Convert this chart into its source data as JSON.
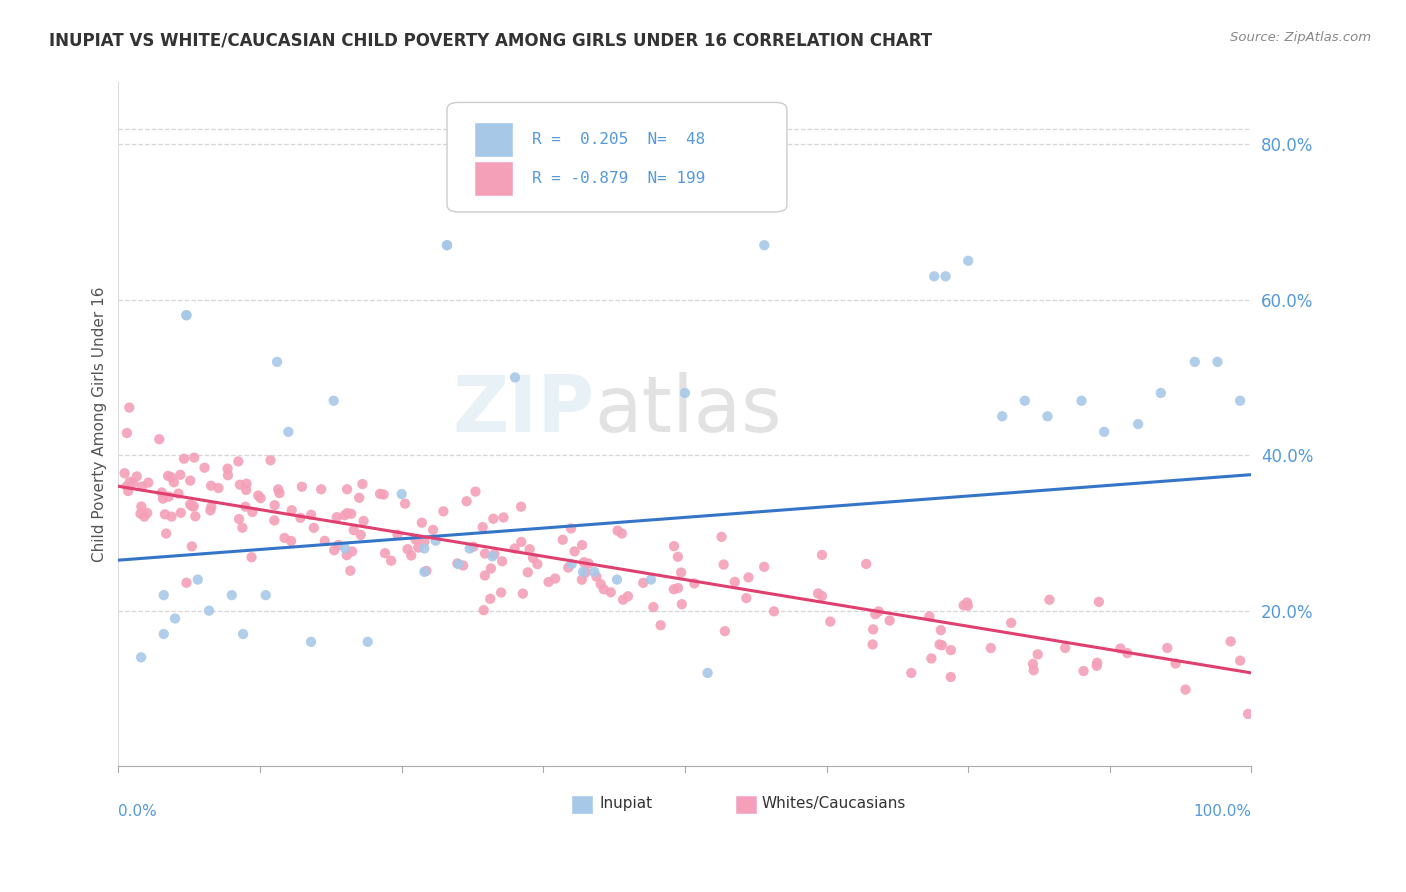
{
  "title": "INUPIAT VS WHITE/CAUCASIAN CHILD POVERTY AMONG GIRLS UNDER 16 CORRELATION CHART",
  "source": "Source: ZipAtlas.com",
  "ylabel": "Child Poverty Among Girls Under 16",
  "xlim": [
    0,
    1
  ],
  "ylim": [
    0.0,
    0.88
  ],
  "ytick_vals": [
    0.2,
    0.4,
    0.6,
    0.8
  ],
  "ytick_labels": [
    "20.0%",
    "40.0%",
    "60.0%",
    "80.0%"
  ],
  "inupiat_color": "#a8c8e8",
  "white_color": "#f4a0b8",
  "trend_inupiat_color": "#3575c8",
  "trend_white_color": "#e04070",
  "background_color": "#ffffff",
  "grid_color": "#cccccc",
  "title_color": "#333333",
  "source_color": "#888888",
  "axis_label_color": "#555555",
  "tick_color": "#5599dd",
  "inupiat_x": [
    0.02,
    0.04,
    0.05,
    0.06,
    0.07,
    0.08,
    0.1,
    0.11,
    0.13,
    0.14,
    0.15,
    0.17,
    0.19,
    0.2,
    0.22,
    0.25,
    0.27,
    0.27,
    0.28,
    0.29,
    0.29,
    0.3,
    0.31,
    0.33,
    0.35,
    0.4,
    0.41,
    0.42,
    0.44,
    0.47,
    0.5,
    0.52,
    0.57,
    0.72,
    0.73,
    0.75,
    0.78,
    0.8,
    0.82,
    0.85,
    0.87,
    0.9,
    0.92,
    0.95,
    0.97,
    0.99,
    0.04,
    0.06
  ],
  "inupiat_y": [
    0.14,
    0.17,
    0.19,
    0.58,
    0.24,
    0.2,
    0.22,
    0.17,
    0.22,
    0.52,
    0.43,
    0.16,
    0.47,
    0.28,
    0.16,
    0.35,
    0.28,
    0.25,
    0.29,
    0.67,
    0.67,
    0.26,
    0.28,
    0.27,
    0.5,
    0.26,
    0.25,
    0.25,
    0.24,
    0.24,
    0.48,
    0.12,
    0.67,
    0.63,
    0.63,
    0.65,
    0.45,
    0.47,
    0.45,
    0.47,
    0.43,
    0.44,
    0.48,
    0.52,
    0.52,
    0.47,
    0.22,
    0.58
  ],
  "inupiat_trend_x0": 0.0,
  "inupiat_trend_y0": 0.265,
  "inupiat_trend_x1": 1.0,
  "inupiat_trend_y1": 0.375,
  "white_trend_x0": 0.0,
  "white_trend_y0": 0.36,
  "white_trend_x1": 1.0,
  "white_trend_y1": 0.12
}
